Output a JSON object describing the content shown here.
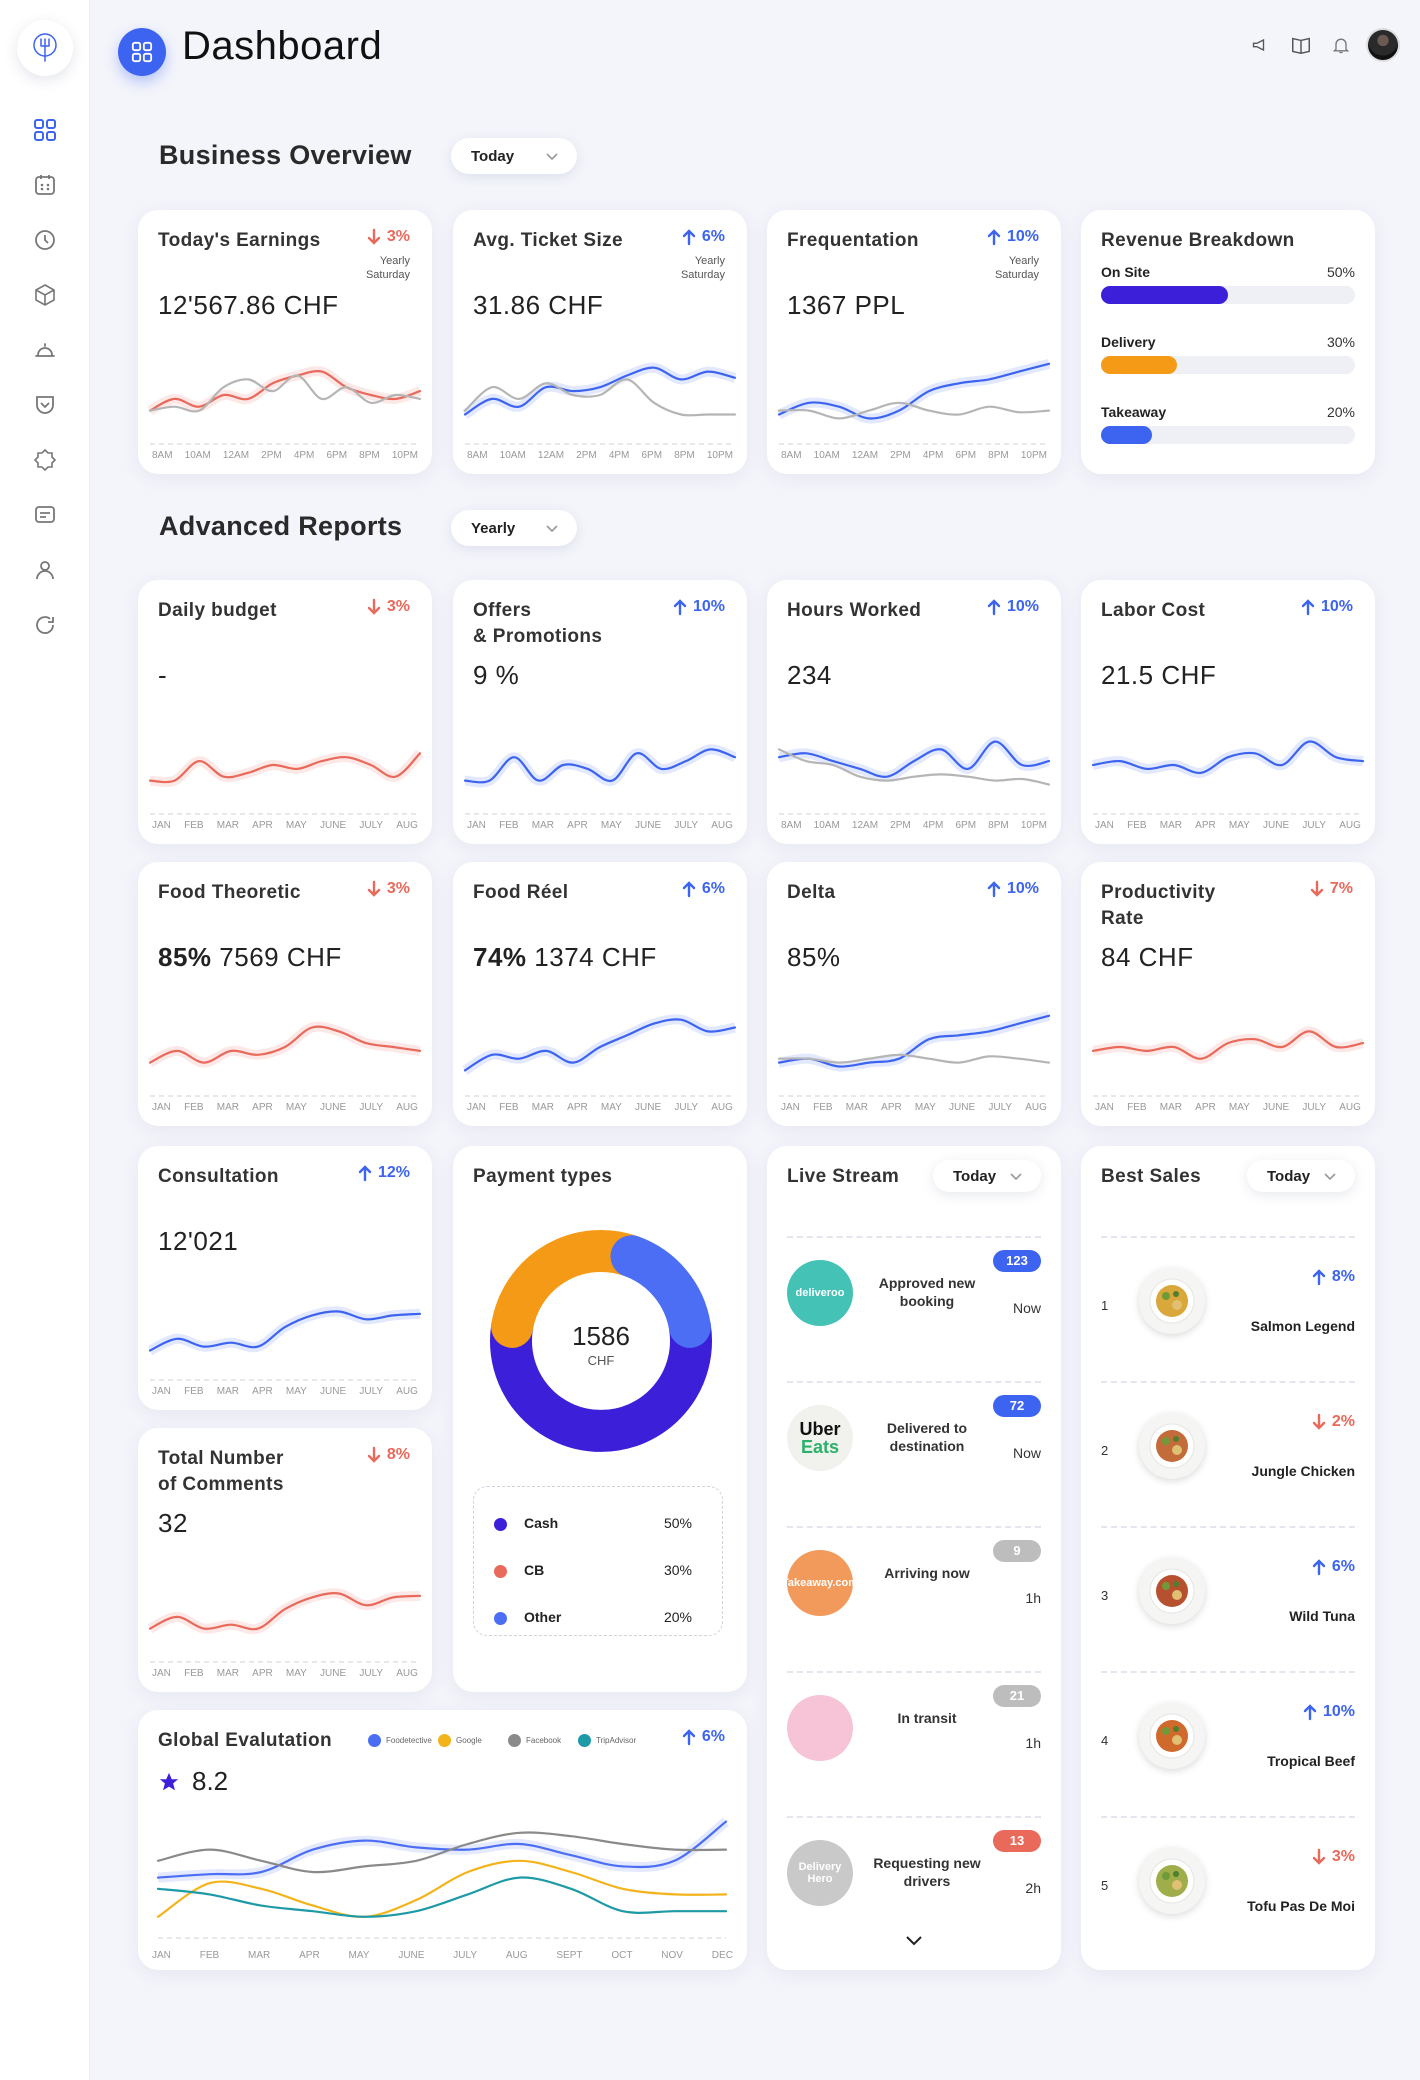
{
  "header": {
    "title": "Dashboard"
  },
  "sections": {
    "overview_title": "Business Overview",
    "overview_filter": "Today",
    "reports_title": "Advanced Reports",
    "reports_filter": "Yearly"
  },
  "colors": {
    "accent": "#3d64f0",
    "negative": "#e9695b",
    "grey": "#b5b5b5",
    "purple": "#3c1fd9",
    "orange": "#f59a16"
  },
  "overview_cards": [
    {
      "title": "Today's Earnings",
      "trend": "3%",
      "direction": "down",
      "sub1": "Yearly",
      "sub2": "Saturday",
      "value": "12'567.86 CHF"
    },
    {
      "title": "Avg. Ticket Size",
      "trend": "6%",
      "direction": "up",
      "sub1": "Yearly",
      "sub2": "Saturday",
      "value": "31.86 CHF"
    },
    {
      "title": "Frequentation",
      "trend": "10%",
      "direction": "up",
      "sub1": "Yearly",
      "sub2": "Saturday",
      "value": "1367 PPL"
    }
  ],
  "hour_labels": [
    "8AM",
    "10AM",
    "12AM",
    "2PM",
    "4PM",
    "6PM",
    "8PM",
    "10PM"
  ],
  "month_labels": [
    "JAN",
    "FEB",
    "MAR",
    "APR",
    "MAY",
    "JUNE",
    "JULY",
    "AUG"
  ],
  "revenue_breakdown": {
    "title": "Revenue Breakdown",
    "items": [
      {
        "label": "On Site",
        "pct": "50%",
        "value": 50,
        "color": "#3c1fd9"
      },
      {
        "label": "Delivery",
        "pct": "30%",
        "value": 30,
        "color": "#f59a16"
      },
      {
        "label": "Takeaway",
        "pct": "20%",
        "value": 20,
        "color": "#3d64f0"
      }
    ]
  },
  "report_cards": [
    {
      "title": "Daily budget",
      "trend": "3%",
      "direction": "down",
      "value": "-"
    },
    {
      "title": "Offers\n& Promotions",
      "trend": "10%",
      "direction": "up",
      "value": "9 %"
    },
    {
      "title": "Hours Worked",
      "trend": "10%",
      "direction": "up",
      "value": "234"
    },
    {
      "title": "Labor Cost",
      "trend": "10%",
      "direction": "up",
      "value": "21.5 CHF"
    },
    {
      "title": "Food Theoretic",
      "trend": "3%",
      "direction": "down",
      "value_bold": "85%",
      "value": " 7569 CHF"
    },
    {
      "title": "Food Réel",
      "trend": "6%",
      "direction": "up",
      "value_bold": "74%",
      "value": " 1374 CHF"
    },
    {
      "title": "Delta",
      "trend": "10%",
      "direction": "up",
      "value": "85%"
    },
    {
      "title": "Productivity\nRate",
      "trend": "7%",
      "direction": "down",
      "value": "84 CHF"
    },
    {
      "title": "Consultation",
      "trend": "12%",
      "direction": "up",
      "value": "12'021"
    },
    {
      "title": "Total Number\nof Comments",
      "trend": "8%",
      "direction": "down",
      "value": "32"
    }
  ],
  "payment_types": {
    "title": "Payment types",
    "total": "1586",
    "unit": "CHF",
    "items": [
      {
        "label": "Cash",
        "pct": "50%",
        "value": 50,
        "color": "#3c1fd9"
      },
      {
        "label": "CB",
        "pct": "30%",
        "value": 30,
        "color": "#e9695b"
      },
      {
        "label": "Other",
        "pct": "20%",
        "value": 20,
        "color": "#4b6ef5"
      }
    ]
  },
  "live_stream": {
    "title": "Live Stream",
    "filter": "Today",
    "items": [
      {
        "logo": "deliveroo",
        "logo_color": "#44c2b6",
        "text": "Approved new booking",
        "badge": "123",
        "badge_color": "#3d64f0",
        "time": "Now"
      },
      {
        "logo": "Uber Eats",
        "logo_color": "#f1f1ee",
        "text": "Delivered to destination",
        "badge": "72",
        "badge_color": "#3d64f0",
        "time": "Now"
      },
      {
        "logo": "Takeaway.com",
        "logo_color": "#f29a5c",
        "text": "Arriving now",
        "badge": "9",
        "badge_color": "#bdbdbd",
        "time": "1h"
      },
      {
        "logo": "",
        "logo_color": "#f6c4d6",
        "text": "In transit",
        "badge": "21",
        "badge_color": "#bdbdbd",
        "time": "1h"
      },
      {
        "logo": "Delivery Hero",
        "logo_color": "#c9c9c9",
        "text": "Requesting new drivers",
        "badge": "13",
        "badge_color": "#e9695b",
        "time": "2h"
      }
    ]
  },
  "best_sales": {
    "title": "Best Sales",
    "filter": "Today",
    "items": [
      {
        "rank": "1",
        "name": "Salmon Legend",
        "trend": "8%",
        "direction": "up"
      },
      {
        "rank": "2",
        "name": "Jungle Chicken",
        "trend": "2%",
        "direction": "down"
      },
      {
        "rank": "3",
        "name": "Wild Tuna",
        "trend": "6%",
        "direction": "up"
      },
      {
        "rank": "4",
        "name": "Tropical Beef",
        "trend": "10%",
        "direction": "up"
      },
      {
        "rank": "5",
        "name": "Tofu Pas De Moi",
        "trend": "3%",
        "direction": "down"
      }
    ]
  },
  "global_evaluation": {
    "title": "Global Evalutation",
    "rating": "8.2",
    "trend": "6%",
    "direction": "up",
    "legend": [
      {
        "name": "Foodetective",
        "color": "#4b6ef5"
      },
      {
        "name": "Google",
        "color": "#f3b41b"
      },
      {
        "name": "Facebook",
        "color": "#8a8a8a"
      },
      {
        "name": "TripAdvisor",
        "color": "#1d9aa6"
      }
    ],
    "months": [
      "JAN",
      "FEB",
      "MAR",
      "APR",
      "MAY",
      "JUNE",
      "JULY",
      "AUG",
      "SEPT",
      "OCT",
      "NOV",
      "DEC"
    ]
  }
}
